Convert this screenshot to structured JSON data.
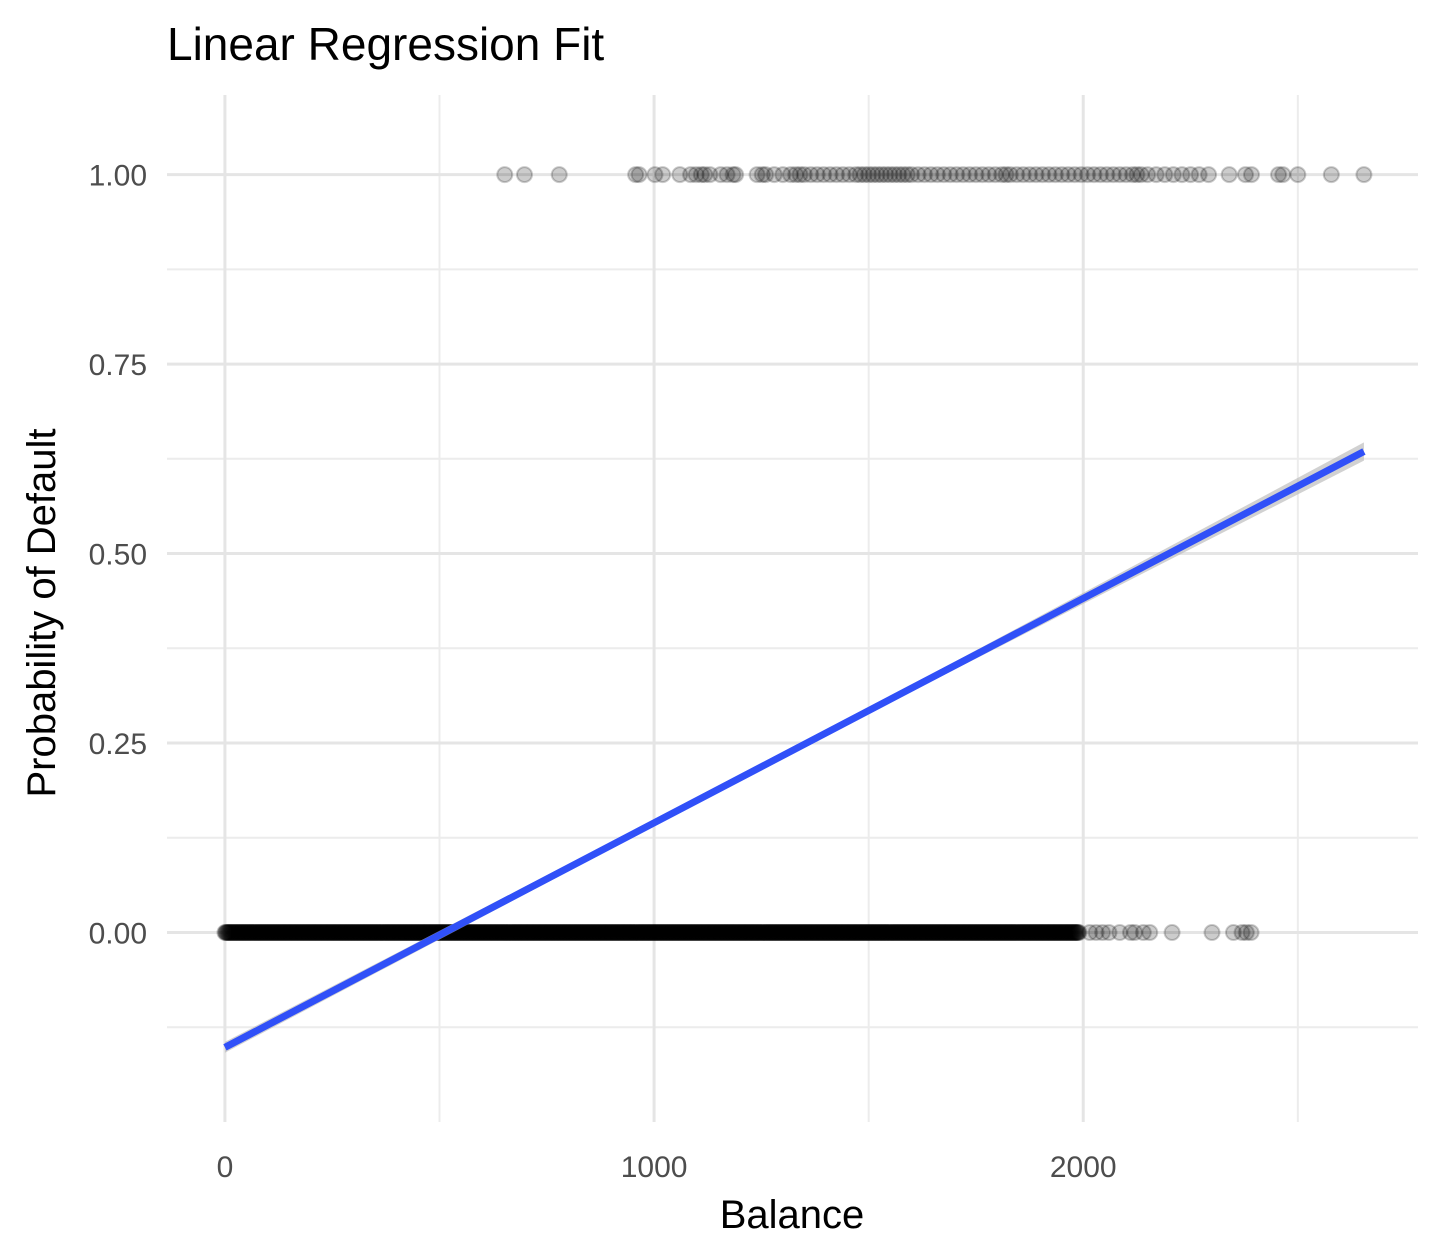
{
  "chart_data": {
    "type": "scatter",
    "title": "Linear Regression Fit",
    "xlabel": "Balance",
    "ylabel": "Probability of Default",
    "xlim": [
      -135,
      2780
    ],
    "ylim": [
      -0.25,
      1.105
    ],
    "x_ticks": [
      0,
      1000,
      2000
    ],
    "x_tick_labels": [
      "0",
      "1000",
      "2000"
    ],
    "y_ticks": [
      0.0,
      0.25,
      0.5,
      0.75,
      1.0
    ],
    "y_tick_labels": [
      "0.00",
      "0.25",
      "0.50",
      "0.75",
      "1.00"
    ],
    "grid": true,
    "legend": "none",
    "point_color": "#000000",
    "point_alpha": 0.2,
    "line_color": "#3050f8",
    "ribbon_color": "#bdbdbd",
    "series": [
      {
        "kind": "points",
        "y": 1,
        "x": [
          652,
          698,
          779,
          957,
          965,
          1002,
          1020,
          1060,
          1085,
          1098,
          1110,
          1118,
          1130,
          1155,
          1170,
          1184,
          1190,
          1240,
          1252,
          1260,
          1280,
          1300,
          1318,
          1330,
          1340,
          1350,
          1365,
          1380,
          1395,
          1410,
          1425,
          1440,
          1455,
          1470,
          1480,
          1490,
          1500,
          1510,
          1520,
          1530,
          1540,
          1550,
          1560,
          1570,
          1580,
          1590,
          1600,
          1615,
          1630,
          1645,
          1660,
          1675,
          1690,
          1705,
          1720,
          1735,
          1750,
          1765,
          1780,
          1795,
          1810,
          1820,
          1830,
          1845,
          1860,
          1875,
          1890,
          1905,
          1920,
          1935,
          1950,
          1965,
          1980,
          1995,
          2010,
          2025,
          2040,
          2055,
          2070,
          2085,
          2100,
          2115,
          2125,
          2135,
          2150,
          2170,
          2190,
          2210,
          2230,
          2250,
          2270,
          2292,
          2340,
          2378,
          2392,
          2455,
          2465,
          2500,
          2578,
          2654
        ]
      },
      {
        "kind": "points",
        "y": 0,
        "x_range": [
          0,
          2390
        ],
        "x_sparse_tail": [
          2015,
          2030,
          2045,
          2060,
          2085,
          2110,
          2120,
          2140,
          2155,
          2207,
          2300,
          2350,
          2370,
          2380,
          2391
        ]
      },
      {
        "kind": "fitted-line",
        "x": [
          0,
          2654
        ],
        "y": [
          -0.1515,
          0.6346
        ],
        "ribbon_half_width_at_end": 0.012
      }
    ]
  }
}
